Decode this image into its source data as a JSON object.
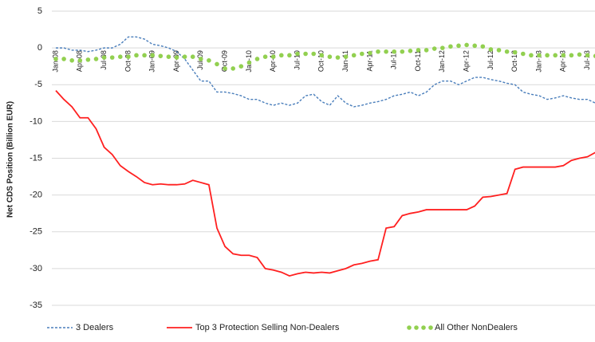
{
  "chart_data": {
    "type": "line",
    "y_label": "Net CDS Position (Billion EUR)",
    "categories": [
      "Jan-08",
      null,
      null,
      "Apr-08",
      null,
      null,
      "Jul-08",
      null,
      null,
      "Oct-08",
      null,
      null,
      "Jan-09",
      null,
      null,
      "Apr-09",
      null,
      null,
      "Jul-09",
      null,
      null,
      "Oct-09",
      null,
      null,
      "Jan-10",
      null,
      null,
      "Apr-10",
      null,
      null,
      "Jul-10",
      null,
      null,
      "Oct-10",
      null,
      null,
      "Jan-11",
      null,
      null,
      "Apr-11",
      null,
      null,
      "Jul-11",
      null,
      null,
      "Oct-11",
      null,
      null,
      "Jan-12",
      null,
      null,
      "Apr-12",
      null,
      null,
      "Jul-12",
      null,
      null,
      "Oct-12",
      null,
      null,
      "Jan-13",
      null,
      null,
      "Apr-13",
      null,
      null,
      "Jul-13",
      null
    ],
    "series": [
      {
        "name": "3 Dealers",
        "color": "#4a7ebb",
        "line_style": "dashed",
        "values": [
          0,
          0,
          -0.3,
          -0.3,
          -0.5,
          -0.3,
          0,
          0,
          0.5,
          1.5,
          1.5,
          1.2,
          0.5,
          0.3,
          0,
          -0.5,
          -1.5,
          -3,
          -4.5,
          -4.5,
          -6,
          -6,
          -6.2,
          -6.5,
          -7,
          -7,
          -7.5,
          -7.8,
          -7.5,
          -7.8,
          -7.5,
          -6.5,
          -6.3,
          -7.3,
          -7.8,
          -6.5,
          -7.5,
          -8,
          -7.8,
          -7.5,
          -7.3,
          -7,
          -6.5,
          -6.3,
          -6,
          -6.5,
          -6,
          -5,
          -4.5,
          -4.5,
          -5,
          -4.5,
          -4,
          -4,
          -4.3,
          -4.5,
          -4.8,
          -5,
          -6,
          -6.3,
          -6.5,
          -7,
          -6.8,
          -6.5,
          -6.8,
          -7,
          -7,
          -7.5
        ]
      },
      {
        "name": "Top 3 Protection Selling Non-Dealers",
        "color": "#ff2020",
        "line_style": "solid",
        "values": [
          -5.8,
          -7,
          -8,
          -9.5,
          -9.5,
          -11,
          -13.5,
          -14.5,
          -16,
          -16.8,
          -17.5,
          -18.3,
          -18.6,
          -18.5,
          -18.6,
          -18.6,
          -18.5,
          -18,
          -18.3,
          -18.6,
          -24.5,
          -27,
          -28,
          -28.2,
          -28.2,
          -28.5,
          -30,
          -30.2,
          -30.5,
          -31,
          -30.7,
          -30.5,
          -30.6,
          -30.5,
          -30.6,
          -30.3,
          -30,
          -29.5,
          -29.3,
          -29,
          -28.8,
          -24.5,
          -24.3,
          -22.8,
          -22.5,
          -22.3,
          -22,
          -22,
          -22,
          -22,
          -22,
          -22,
          -21.5,
          -20.3,
          -20.2,
          -20,
          -19.8,
          -16.5,
          -16.2,
          -16.2,
          -16.2,
          -16.2,
          -16.2,
          -16,
          -15.3,
          -15,
          -14.8,
          -14.2
        ]
      },
      {
        "name": "All Other NonDealers",
        "color": "#92d050",
        "line_style": "dots",
        "values": [
          -1.5,
          -1.5,
          -1.7,
          -1.7,
          -1.6,
          -1.5,
          -1.3,
          -1.3,
          -1.2,
          -1.2,
          -1,
          -1,
          -1,
          -1.1,
          -1.2,
          -1.3,
          -1.2,
          -1.2,
          -1.5,
          -1.7,
          -2.2,
          -2.8,
          -2.8,
          -2.5,
          -2,
          -1.5,
          -1.2,
          -1.2,
          -1,
          -1,
          -0.8,
          -0.8,
          -0.8,
          -1,
          -1.2,
          -1.3,
          -1.2,
          -1,
          -0.8,
          -0.7,
          -0.5,
          -0.5,
          -0.5,
          -0.5,
          -0.4,
          -0.3,
          -0.3,
          -0.1,
          0,
          0.2,
          0.3,
          0.4,
          0.3,
          0.2,
          -0.2,
          -0.3,
          -0.5,
          -0.6,
          -0.8,
          -1,
          -1,
          -1,
          -1,
          -1,
          -1,
          -0.9,
          -1,
          -1.1
        ]
      }
    ],
    "ylim": [
      -35,
      5
    ],
    "yticks": [
      -35,
      -30,
      -25,
      -20,
      -15,
      -10,
      -5,
      0,
      5
    ],
    "grid": true
  }
}
